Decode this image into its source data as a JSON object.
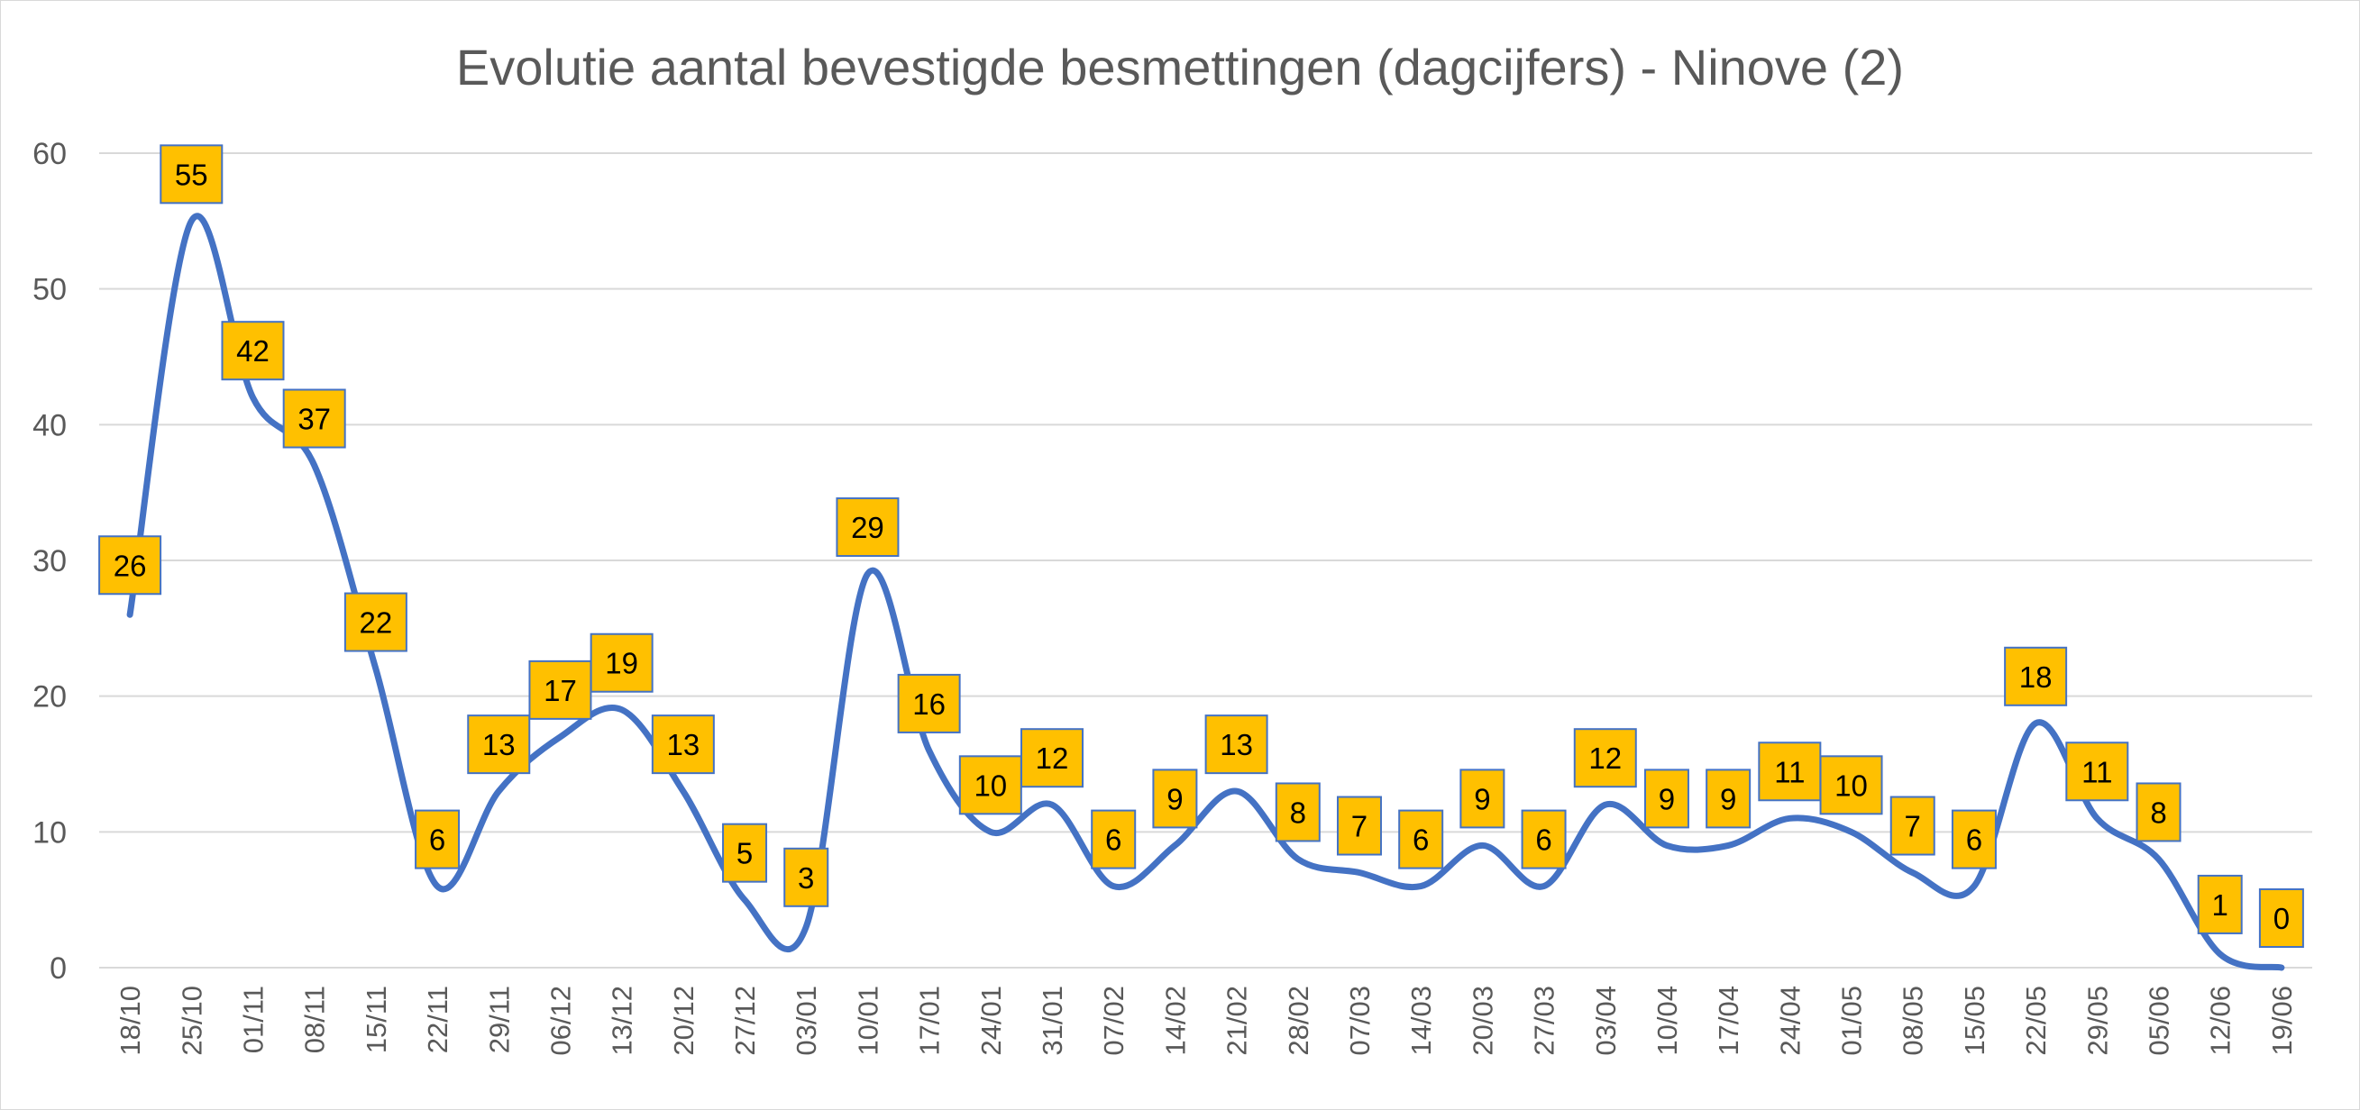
{
  "chart_data": {
    "type": "line",
    "title": "Evolutie aantal bevestigde besmettingen (dagcijfers) - Ninove (2)",
    "xlabel": "",
    "ylabel": "",
    "ylim": [
      0,
      60
    ],
    "yticks": [
      0,
      10,
      20,
      30,
      40,
      50,
      60
    ],
    "grid": true,
    "smooth": true,
    "categories": [
      "18/10",
      "25/10",
      "01/11",
      "08/11",
      "15/11",
      "22/11",
      "29/11",
      "06/12",
      "13/12",
      "20/12",
      "27/12",
      "03/01",
      "10/01",
      "17/01",
      "24/01",
      "31/01",
      "07/02",
      "14/02",
      "21/02",
      "28/02",
      "07/03",
      "14/03",
      "20/03",
      "27/03",
      "03/04",
      "10/04",
      "17/04",
      "24/04",
      "01/05",
      "08/05",
      "15/05",
      "22/05",
      "29/05",
      "05/06",
      "12/06",
      "19/06"
    ],
    "series": [
      {
        "name": "Ninove",
        "color": "#4472c4",
        "label_color": "#ffc000",
        "values": [
          26,
          55,
          42,
          37,
          22,
          6,
          13,
          17,
          19,
          13,
          5,
          3,
          29,
          16,
          10,
          12,
          6,
          9,
          13,
          8,
          7,
          6,
          9,
          6,
          12,
          9,
          9,
          11,
          10,
          7,
          6,
          18,
          11,
          8,
          1,
          0
        ]
      }
    ]
  }
}
